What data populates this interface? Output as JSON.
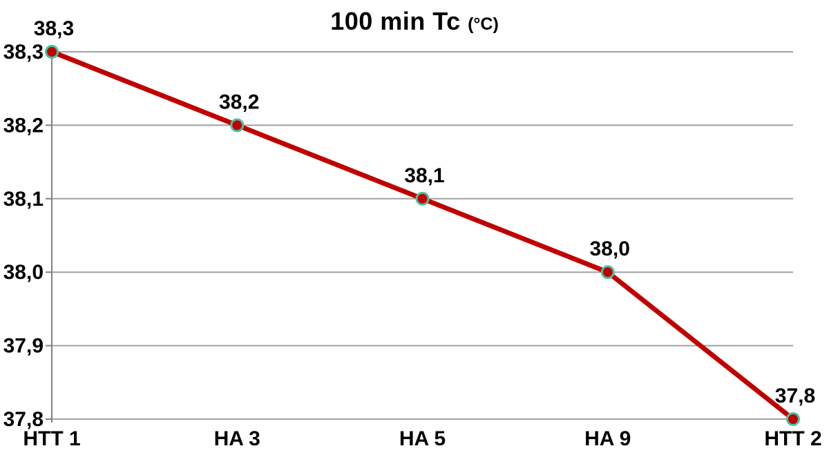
{
  "chart_data": {
    "type": "line",
    "title": "100 min Tc",
    "title_unit": "(°C)",
    "xlabel": "",
    "ylabel": "",
    "categories": [
      "HTT 1",
      "HA 3",
      "HA 5",
      "HA 9",
      "HTT 2"
    ],
    "series": [
      {
        "name": "Tc",
        "values": [
          38.3,
          38.2,
          38.1,
          38.0,
          37.8
        ],
        "labels": [
          "38,3",
          "38,2",
          "38,1",
          "38,0",
          "37,8"
        ]
      }
    ],
    "ylim": [
      37.8,
      38.3
    ],
    "y_ticks": [
      {
        "value": 38.3,
        "label": "38,3"
      },
      {
        "value": 38.2,
        "label": "38,2"
      },
      {
        "value": 38.1,
        "label": "38,1"
      },
      {
        "value": 38.0,
        "label": "38,0"
      },
      {
        "value": 37.9,
        "label": "37,9"
      },
      {
        "value": 37.8,
        "label": "37,8"
      }
    ],
    "decimal_separator": ",",
    "grid": "horizontal-only",
    "legend_position": "none",
    "colors": {
      "line": "#C00000",
      "marker_fill": "#C00000",
      "marker_ring": "#47C2A3",
      "gridline": "#A0A0A0",
      "axis": "#808080",
      "text": "#000000",
      "background": "#FFFFFF"
    }
  }
}
